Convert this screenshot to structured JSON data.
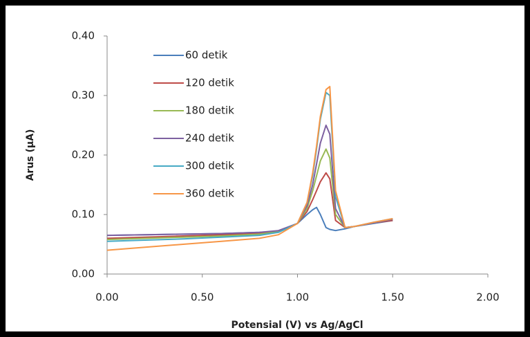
{
  "chart_data": {
    "type": "line",
    "x_label": "Potensial (V) vs Ag/AgCl",
    "y_label": "Arus (µA)",
    "x": [
      0,
      0.2,
      0.4,
      0.6,
      0.8,
      0.9,
      1.0,
      1.05,
      1.08,
      1.1,
      1.12,
      1.15,
      1.17,
      1.2,
      1.25,
      1.3,
      1.4,
      1.5
    ],
    "series": [
      {
        "name": "60 detik",
        "color": "#4a7ebb",
        "values": [
          0.065,
          0.066,
          0.067,
          0.068,
          0.07,
          0.072,
          0.085,
          0.1,
          0.108,
          0.112,
          0.1,
          0.078,
          0.075,
          0.073,
          0.076,
          0.08,
          0.085,
          0.09
        ]
      },
      {
        "name": "120 detik",
        "color": "#be4b48",
        "values": [
          0.06,
          0.062,
          0.064,
          0.066,
          0.068,
          0.072,
          0.085,
          0.105,
          0.125,
          0.14,
          0.155,
          0.17,
          0.16,
          0.09,
          0.078,
          0.08,
          0.086,
          0.09
        ]
      },
      {
        "name": "180 detik",
        "color": "#98b954",
        "values": [
          0.058,
          0.06,
          0.062,
          0.064,
          0.067,
          0.071,
          0.085,
          0.11,
          0.14,
          0.165,
          0.19,
          0.21,
          0.195,
          0.1,
          0.078,
          0.08,
          0.086,
          0.092
        ]
      },
      {
        "name": "240 detik",
        "color": "#7d60a0",
        "values": [
          0.065,
          0.066,
          0.067,
          0.068,
          0.07,
          0.073,
          0.085,
          0.115,
          0.15,
          0.185,
          0.22,
          0.25,
          0.235,
          0.11,
          0.078,
          0.08,
          0.086,
          0.092
        ]
      },
      {
        "name": "300 detik",
        "color": "#46aac5",
        "values": [
          0.055,
          0.057,
          0.059,
          0.062,
          0.065,
          0.07,
          0.085,
          0.12,
          0.165,
          0.21,
          0.26,
          0.305,
          0.3,
          0.13,
          0.078,
          0.08,
          0.087,
          0.093
        ]
      },
      {
        "name": "360 detik",
        "color": "#f79646",
        "values": [
          0.04,
          0.045,
          0.05,
          0.055,
          0.06,
          0.066,
          0.085,
          0.12,
          0.17,
          0.215,
          0.265,
          0.31,
          0.315,
          0.14,
          0.078,
          0.08,
          0.087,
          0.093
        ]
      }
    ],
    "xlim": [
      0,
      2
    ],
    "ylim": [
      0,
      0.4
    ],
    "xticks": [
      {
        "value": 0,
        "label": "0.00"
      },
      {
        "value": 0.5,
        "label": "0.50"
      },
      {
        "value": 1,
        "label": "1.00"
      },
      {
        "value": 1.5,
        "label": "1.50"
      },
      {
        "value": 2,
        "label": "2.00"
      }
    ],
    "yticks": [
      {
        "value": 0,
        "label": "0.00"
      },
      {
        "value": 0.1,
        "label": "0.10"
      },
      {
        "value": 0.2,
        "label": "0.20"
      },
      {
        "value": 0.3,
        "label": "0.30"
      },
      {
        "value": 0.4,
        "label": "0.40"
      }
    ],
    "grid": false,
    "legend": "upper left"
  }
}
